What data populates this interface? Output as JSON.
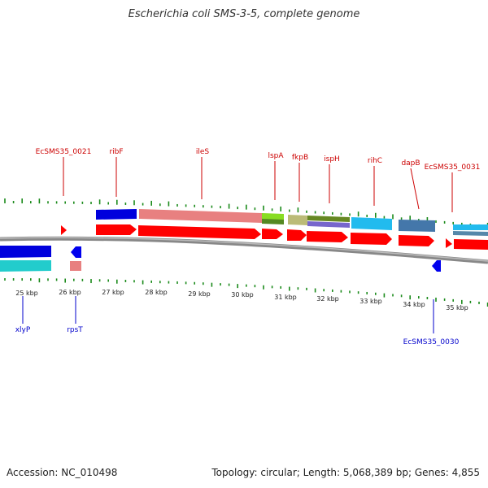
{
  "title": "Escherichia coli SMS-3-5, complete genome",
  "footer": {
    "accession": "Accession: NC_010498",
    "stats": "Topology: circular; Length: 5,068,389 bp; Genes: 4,855"
  },
  "scale_labels": [
    "25 kbp",
    "26 kbp",
    "27 kbp",
    "28 kbp",
    "29 kbp",
    "30 kbp",
    "31 kbp",
    "32 kbp",
    "33 kbp",
    "34 kbp",
    "35 kbp"
  ],
  "genes_forward": [
    "EcSMS35_0021",
    "ribF",
    "ileS",
    "lspA",
    "fkpB",
    "ispH",
    "rihC",
    "dapB",
    "EcSMS35_0031"
  ],
  "genes_reverse": [
    "xlyP",
    "rpsT",
    "EcSMS35_0030"
  ],
  "colors": {
    "forward_label": "#cc0000",
    "reverse_label": "#0000cc",
    "cds": "#ff0000",
    "backbone": "#888888",
    "gc_tick": "#1a8a1a"
  }
}
